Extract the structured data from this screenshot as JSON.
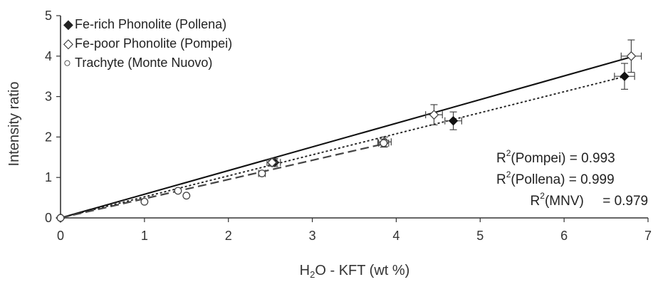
{
  "chart_data": {
    "type": "scatter",
    "xlabel": {
      "prefix": "H",
      "subscript": "2",
      "suffix": "O - KFT (wt %)"
    },
    "ylabel": "Intensity ratio",
    "xlim": [
      0,
      7
    ],
    "ylim": [
      0,
      5
    ],
    "xticks": [
      "0",
      "1",
      "2",
      "3",
      "4",
      "5",
      "6",
      "7"
    ],
    "yticks": [
      "0",
      "1",
      "2",
      "3",
      "4",
      "5"
    ],
    "legend": [
      {
        "marker": "◆",
        "label": "Fe-rich Phonolite (Pollena)"
      },
      {
        "marker": "◇",
        "label": "Fe-poor Phonolite (Pompei)"
      },
      {
        "marker": "○",
        "label": "Trachyte (Monte Nuovo)"
      }
    ],
    "stats": [
      {
        "prefix": "R",
        "sup": "2",
        "text": "(Pompei) = 0.993"
      },
      {
        "prefix": "R",
        "sup": "2",
        "text": "(Pollena) = 0.999"
      },
      {
        "prefix": "R",
        "sup": "2",
        "text": "(MNV)     = 0.979"
      }
    ],
    "series": [
      {
        "name": "Fe-rich Phonolite (Pollena)",
        "marker": "filled-diamond",
        "points": [
          {
            "x": 0,
            "y": 0
          },
          {
            "x": 2.55,
            "y": 1.37,
            "xerr": 0.07,
            "yerr": 0.1
          },
          {
            "x": 4.68,
            "y": 2.4,
            "xerr": 0.1,
            "yerr": 0.22
          },
          {
            "x": 6.72,
            "y": 3.5,
            "xerr": 0.12,
            "yerr": 0.32
          }
        ]
      },
      {
        "name": "Fe-poor Phonolite (Pompei)",
        "marker": "open-diamond",
        "points": [
          {
            "x": 0,
            "y": 0
          },
          {
            "x": 2.52,
            "y": 1.37,
            "xerr": 0.06,
            "yerr": 0.09
          },
          {
            "x": 3.86,
            "y": 1.88,
            "xerr": 0.08,
            "yerr": 0.12
          },
          {
            "x": 4.45,
            "y": 2.55,
            "xerr": 0.1,
            "yerr": 0.25
          },
          {
            "x": 6.8,
            "y": 4.0,
            "xerr": 0.12,
            "yerr": 0.4
          }
        ]
      },
      {
        "name": "Trachyte (Monte Nuovo)",
        "marker": "open-circle",
        "points": [
          {
            "x": 0,
            "y": 0
          },
          {
            "x": 1.0,
            "y": 0.4
          },
          {
            "x": 1.4,
            "y": 0.67
          },
          {
            "x": 1.5,
            "y": 0.55
          },
          {
            "x": 2.4,
            "y": 1.1,
            "xerr": 0.04,
            "yerr": 0.05
          },
          {
            "x": 3.85,
            "y": 1.85,
            "xerr": 0.06,
            "yerr": 0.1
          }
        ]
      }
    ],
    "fits": [
      {
        "name": "Pompei",
        "style": "solid",
        "slope": 0.585,
        "xmax": 6.8
      },
      {
        "name": "Pollena",
        "style": "dotted",
        "slope": 0.52,
        "xmax": 6.72
      },
      {
        "name": "MNV",
        "style": "dashed",
        "slope": 0.475,
        "xmax": 3.9
      }
    ]
  }
}
